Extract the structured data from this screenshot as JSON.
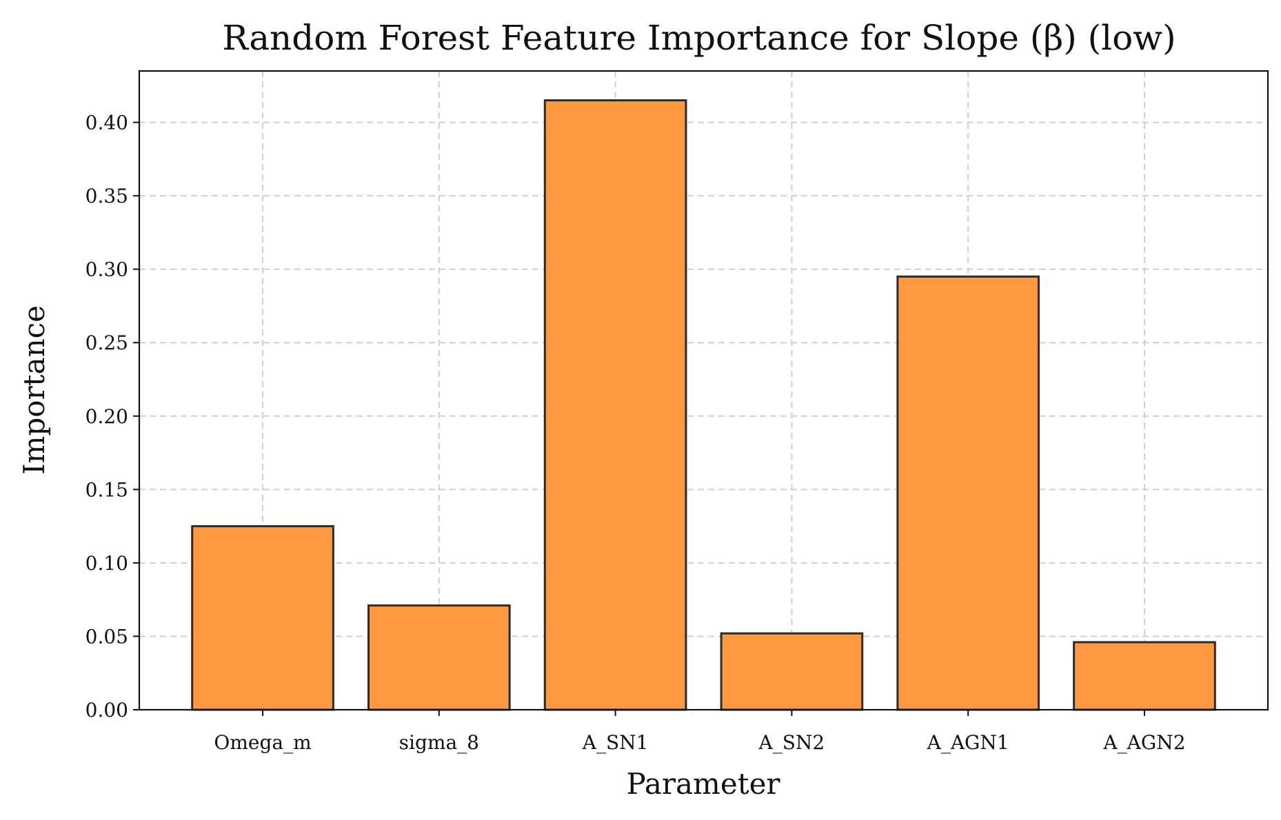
{
  "chart_data": {
    "type": "bar",
    "title": "Random Forest Feature Importance for Slope (β) (low)",
    "xlabel": "Parameter",
    "ylabel": "Importance",
    "categories": [
      "Omega_m",
      "sigma_8",
      "A_SN1",
      "A_SN2",
      "A_AGN1",
      "A_AGN2"
    ],
    "values": [
      0.125,
      0.071,
      0.415,
      0.052,
      0.295,
      0.046
    ],
    "ylim": [
      0,
      0.435
    ],
    "yticks": [
      0.0,
      0.05,
      0.1,
      0.15,
      0.2,
      0.25,
      0.3,
      0.35,
      0.4
    ],
    "ytick_labels": [
      "0.00",
      "0.05",
      "0.10",
      "0.15",
      "0.20",
      "0.25",
      "0.30",
      "0.35",
      "0.40"
    ],
    "grid": true,
    "bar_color": "#ff9940",
    "edge_color": "#2b2b2b"
  }
}
